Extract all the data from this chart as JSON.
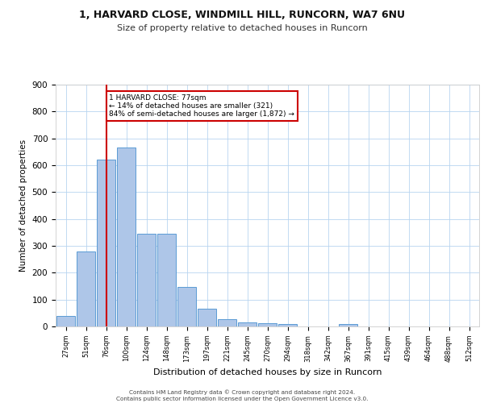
{
  "title1": "1, HARVARD CLOSE, WINDMILL HILL, RUNCORN, WA7 6NU",
  "title2": "Size of property relative to detached houses in Runcorn",
  "xlabel": "Distribution of detached houses by size in Runcorn",
  "ylabel": "Number of detached properties",
  "bins": [
    "27sqm",
    "51sqm",
    "76sqm",
    "100sqm",
    "124sqm",
    "148sqm",
    "173sqm",
    "197sqm",
    "221sqm",
    "245sqm",
    "270sqm",
    "294sqm",
    "318sqm",
    "342sqm",
    "367sqm",
    "391sqm",
    "415sqm",
    "439sqm",
    "464sqm",
    "488sqm",
    "512sqm"
  ],
  "bar_heights": [
    40,
    280,
    620,
    665,
    345,
    345,
    148,
    65,
    28,
    14,
    11,
    10,
    0,
    0,
    8,
    0,
    0,
    0,
    0,
    0,
    0
  ],
  "bar_color": "#aec6e8",
  "bar_edge_color": "#5b9bd5",
  "vline_index": 2,
  "property_line_label": "1 HARVARD CLOSE: 77sqm",
  "annotation_line1": "← 14% of detached houses are smaller (321)",
  "annotation_line2": "84% of semi-detached houses are larger (1,872) →",
  "vline_color": "#cc0000",
  "annotation_box_color": "#ffffff",
  "annotation_box_edge": "#cc0000",
  "footer1": "Contains HM Land Registry data © Crown copyright and database right 2024.",
  "footer2": "Contains public sector information licensed under the Open Government Licence v3.0.",
  "ylim": [
    0,
    900
  ],
  "yticks": [
    0,
    100,
    200,
    300,
    400,
    500,
    600,
    700,
    800,
    900
  ]
}
